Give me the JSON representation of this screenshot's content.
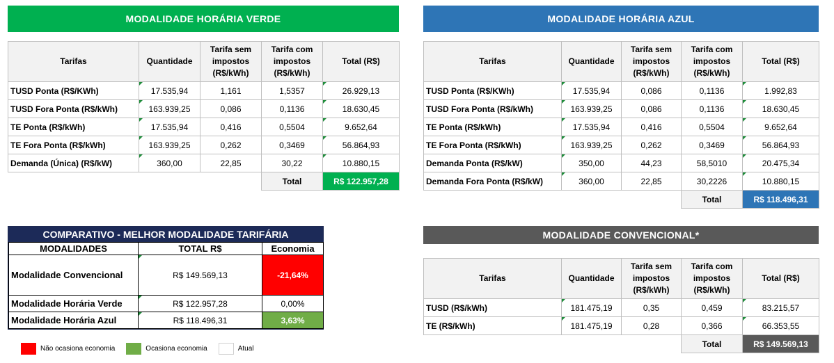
{
  "colors": {
    "verde": "#00b050",
    "azul": "#2e75b6",
    "convencional": "#595959",
    "navy": "#1c2a58",
    "neg": "#ff0000",
    "pos": "#70ad47"
  },
  "headers": {
    "tarifas": "Tarifas",
    "quantidade": "Quantidade",
    "sem": "Tarifa sem impostos (R$/kWh)",
    "com": "Tarifa com impostos (R$/kWh)",
    "total": "Total (R$)",
    "total_label": "Total"
  },
  "verde": {
    "title": "MODALIDADE HORÁRIA VERDE",
    "rows": [
      {
        "label": "TUSD Ponta (R$/KWh)",
        "qtd": "17.535,94",
        "sem": "1,161",
        "com": "1,5357",
        "total": "26.929,13"
      },
      {
        "label": "TUSD Fora Ponta (R$/kWh)",
        "qtd": "163.939,25",
        "sem": "0,086",
        "com": "0,1136",
        "total": "18.630,45"
      },
      {
        "label": "TE Ponta  (R$/kWh)",
        "qtd": "17.535,94",
        "sem": "0,416",
        "com": "0,5504",
        "total": "9.652,64"
      },
      {
        "label": "TE Fora Ponta  (R$/kWh)",
        "qtd": "163.939,25",
        "sem": "0,262",
        "com": "0,3469",
        "total": "56.864,93"
      },
      {
        "label": "Demanda (Única) (R$/kW)",
        "qtd": "360,00",
        "sem": "22,85",
        "com": "30,22",
        "total": "10.880,15"
      }
    ],
    "total": "R$  122.957,28"
  },
  "azul": {
    "title": "MODALIDADE HORÁRIA AZUL",
    "rows": [
      {
        "label": "TUSD Ponta (R$/KWh)",
        "qtd": "17.535,94",
        "sem": "0,086",
        "com": "0,1136",
        "total": "1.992,83"
      },
      {
        "label": "TUSD Fora Ponta (R$/kWh)",
        "qtd": "163.939,25",
        "sem": "0,086",
        "com": "0,1136",
        "total": "18.630,45"
      },
      {
        "label": "TE Ponta  (R$/kWh)",
        "qtd": "17.535,94",
        "sem": "0,416",
        "com": "0,5504",
        "total": "9.652,64"
      },
      {
        "label": "TE Fora Ponta  (R$/kWh)",
        "qtd": "163.939,25",
        "sem": "0,262",
        "com": "0,3469",
        "total": "56.864,93"
      },
      {
        "label": "Demanda Ponta (R$/kW)",
        "qtd": "350,00",
        "sem": "44,23",
        "com": "58,5010",
        "total": "20.475,34"
      },
      {
        "label": "Demanda Fora Ponta (R$/kW)",
        "qtd": "360,00",
        "sem": "22,85",
        "com": "30,2226",
        "total": "10.880,15"
      }
    ],
    "total": "R$    118.496,31"
  },
  "convencional": {
    "title": "MODALIDADE CONVENCIONAL*",
    "rows": [
      {
        "label": "TUSD (R$/kWh)",
        "qtd": "181.475,19",
        "sem": "0,35",
        "com": "0,459",
        "total": "83.215,57"
      },
      {
        "label": "TE (R$/kWh)",
        "qtd": "181.475,19",
        "sem": "0,28",
        "com": "0,366",
        "total": "66.353,55"
      }
    ],
    "total": "R$     149.569,13"
  },
  "comparativo": {
    "title": "COMPARATIVO - MELHOR MODALIDADE TARIFÁRIA",
    "h_mod": "MODALIDADES",
    "h_total": "TOTAL R$",
    "h_eco": "Economia",
    "rows": [
      {
        "label": "Modalidade Convencional",
        "total": "R$ 149.569,13",
        "eco": "-21,64%"
      },
      {
        "label": "Modalidade Horária Verde",
        "total": "R$ 122.957,28",
        "eco": "0,00%"
      },
      {
        "label": "Modalidade Horária Azul",
        "total": "R$ 118.496,31",
        "eco": "3,63%"
      }
    ]
  },
  "legend": {
    "neg": "Não ocasiona economia",
    "pos": "Ocasiona economia",
    "atual": "Atual"
  }
}
